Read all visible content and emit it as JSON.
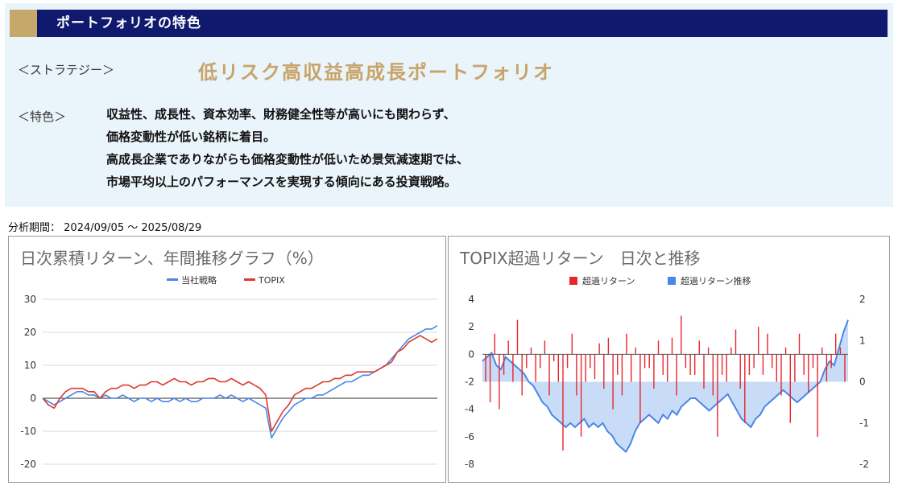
{
  "header": {
    "title": "ポートフォリオの特色"
  },
  "strategy": {
    "label": "＜ストラテジー＞",
    "value": "低リスク高収益高成長ポートフォリオ"
  },
  "features": {
    "label": "＜特色＞",
    "lines": [
      "収益性、成長性、資本効率、財務健全性等が高いにも関わらず、",
      "価格変動性が低い銘柄に着目。",
      "高成長企業でありながらも価格変動性が低いため景気減速期では、",
      "市場平均以上のパフォーマンスを実現する傾向にある投資戦略。"
    ]
  },
  "period": {
    "label": "分析期間：",
    "value": "2024/09/05 ～ 2025/08/29"
  },
  "colors": {
    "strategy": "#4a86e8",
    "topix": "#db3a2f",
    "excess_bar": "#e8262c",
    "excess_area": "#4a86e8"
  },
  "chart_data": [
    {
      "type": "line",
      "title": "日次累積リターン、年間推移グラフ（%）",
      "ylim": [
        -20,
        30
      ],
      "yticks": [
        30,
        20,
        10,
        0,
        -10,
        -20
      ],
      "legend_position": "top-center",
      "grid": true,
      "series": [
        {
          "name": "当社戦略",
          "color": "#4a86e8",
          "values": [
            0,
            -1,
            -2,
            -1,
            0,
            1,
            2,
            2,
            1,
            1,
            0,
            1,
            0,
            0,
            1,
            0,
            -1,
            0,
            0,
            -1,
            0,
            -1,
            -1,
            0,
            -1,
            0,
            -1,
            -1,
            0,
            0,
            0,
            1,
            0,
            1,
            0,
            -1,
            0,
            -1,
            -2,
            -3,
            -12,
            -9,
            -6,
            -4,
            -2,
            -1,
            0,
            0,
            1,
            1,
            2,
            3,
            4,
            5,
            5,
            6,
            7,
            7,
            8,
            9,
            10,
            12,
            14,
            16,
            18,
            19,
            20,
            21,
            21,
            22
          ]
        },
        {
          "name": "TOPIX",
          "color": "#db3a2f",
          "values": [
            0,
            -2,
            -3,
            0,
            2,
            3,
            3,
            3,
            2,
            2,
            0,
            2,
            3,
            3,
            4,
            4,
            3,
            4,
            4,
            5,
            5,
            4,
            5,
            6,
            5,
            5,
            4,
            5,
            5,
            6,
            6,
            5,
            5,
            6,
            5,
            4,
            5,
            4,
            3,
            1,
            -10,
            -7,
            -4,
            -2,
            1,
            2,
            3,
            3,
            4,
            5,
            5,
            6,
            6,
            7,
            7,
            8,
            8,
            8,
            8,
            9,
            10,
            11,
            14,
            15,
            17,
            18,
            19,
            18,
            17,
            18
          ]
        }
      ]
    },
    {
      "type": "bar",
      "title": "TOPIX超過リターン　日次と推移",
      "ylim_left": [
        -8,
        4
      ],
      "yticks_left": [
        4,
        2,
        0,
        -2,
        -4,
        -6,
        -8
      ],
      "ylim_right": [
        -2,
        2
      ],
      "yticks_right": [
        2,
        1,
        0,
        -1,
        -2
      ],
      "legend_position": "top-center",
      "series": [
        {
          "name": "超過リターン",
          "axis": "left",
          "color": "#e8262c",
          "values": [
            -2,
            -3.5,
            1.5,
            -4,
            -1.5,
            1,
            -2,
            2.5,
            -3,
            -1,
            0.5,
            -2,
            -1,
            1,
            -3,
            -0.5,
            -2,
            -7,
            -1,
            1.5,
            -3,
            -6,
            -2,
            -1,
            -1.8,
            0.8,
            -2.5,
            1.2,
            -4,
            -1.5,
            -3,
            1.5,
            -2,
            0.5,
            -5,
            -1,
            -1,
            -2.5,
            1,
            -1.5,
            -2,
            1.2,
            -3,
            2.8,
            -1,
            -1.5,
            -1.5,
            1,
            -2.5,
            0.5,
            -3,
            -6,
            -1.5,
            -2,
            0.5,
            1.8,
            -2.5,
            -5,
            -1.5,
            -1,
            2,
            -1.5,
            1.5,
            -1,
            -2,
            -3,
            0.5,
            -5,
            -2,
            1.5,
            -1.5,
            -2.8,
            -1,
            -6,
            0.5,
            -2,
            -1,
            1.5,
            0.5,
            -2
          ]
        },
        {
          "name": "超過リターン推移",
          "axis": "right",
          "color": "#4a86e8",
          "values": [
            0.5,
            0.6,
            0.7,
            0.4,
            0.3,
            0.6,
            0.5,
            0.4,
            0.3,
            0.2,
            0,
            -0.1,
            -0.3,
            -0.5,
            -0.6,
            -0.8,
            -0.9,
            -1.0,
            -1.1,
            -1.0,
            -1.1,
            -1.0,
            -0.9,
            -1.1,
            -1.0,
            -1.1,
            -1.0,
            -1.2,
            -1.3,
            -1.5,
            -1.6,
            -1.7,
            -1.5,
            -1.2,
            -1.0,
            -0.9,
            -0.8,
            -0.9,
            -1.0,
            -0.8,
            -0.9,
            -0.7,
            -0.8,
            -0.6,
            -0.5,
            -0.4,
            -0.4,
            -0.5,
            -0.6,
            -0.7,
            -0.6,
            -0.5,
            -0.4,
            -0.3,
            -0.5,
            -0.7,
            -0.9,
            -1.0,
            -1.1,
            -0.9,
            -0.8,
            -0.6,
            -0.5,
            -0.4,
            -0.3,
            -0.2,
            -0.3,
            -0.4,
            -0.5,
            -0.4,
            -0.3,
            -0.2,
            -0.1,
            0,
            0.3,
            0.5,
            0.4,
            0.8,
            1.2,
            1.5
          ]
        }
      ]
    }
  ]
}
